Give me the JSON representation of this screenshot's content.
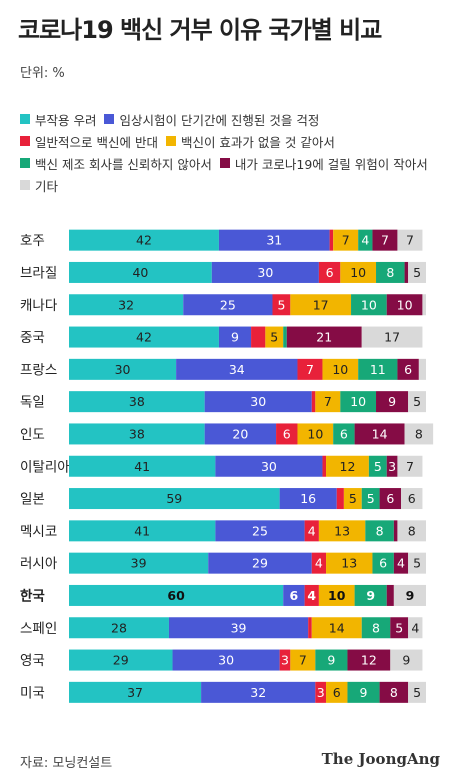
{
  "title": "코로나19 백신 거부 이유 국가별 비교",
  "unit": "단위: %",
  "source": "자료: 모닝컨설트",
  "brand": "The JoongAng",
  "chart_data": {
    "type": "bar",
    "orientation": "horizontal",
    "stacked": true,
    "xlim": [
      0,
      100
    ],
    "grid": false,
    "legend_position": "top",
    "categories": [
      "호주",
      "브라질",
      "캐나다",
      "중국",
      "프랑스",
      "독일",
      "인도",
      "이탈리아",
      "일본",
      "멕시코",
      "러시아",
      "한국",
      "스페인",
      "영국",
      "미국"
    ],
    "highlight_category": "한국",
    "series": [
      {
        "name": "부작용 우려",
        "color": "#23c3c3",
        "values": [
          42,
          40,
          32,
          42,
          30,
          38,
          38,
          41,
          59,
          41,
          39,
          60,
          28,
          29,
          37
        ]
      },
      {
        "name": "임상시험이 단기간에 진행된 것을 걱정",
        "color": "#4a58d6",
        "values": [
          31,
          30,
          25,
          9,
          34,
          30,
          20,
          30,
          16,
          25,
          29,
          6,
          39,
          30,
          32
        ]
      },
      {
        "name": "일반적으로 백신에 반대",
        "color": "#e8213a",
        "values": [
          1,
          6,
          5,
          4,
          7,
          1,
          6,
          1,
          2,
          4,
          4,
          4,
          1,
          3,
          3
        ]
      },
      {
        "name": "백신이 효과가 없을 것 같아서",
        "color": "#f2b500",
        "values": [
          7,
          10,
          17,
          5,
          10,
          7,
          10,
          12,
          5,
          13,
          13,
          10,
          14,
          7,
          6
        ]
      },
      {
        "name": "백신 제조 회사를 신뢰하지 않아서",
        "color": "#17a878",
        "values": [
          4,
          8,
          10,
          1,
          11,
          10,
          6,
          5,
          5,
          8,
          6,
          9,
          8,
          9,
          9
        ]
      },
      {
        "name": "내가 코로나19에 걸릴 위험이 작아서",
        "color": "#850c45",
        "values": [
          7,
          1,
          10,
          21,
          6,
          9,
          14,
          3,
          6,
          1,
          4,
          2,
          5,
          12,
          8
        ]
      },
      {
        "name": "기타",
        "color": "#d9d9d9",
        "values": [
          7,
          5,
          1,
          17,
          2,
          5,
          8,
          7,
          6,
          8,
          5,
          9,
          4,
          9,
          5
        ]
      }
    ],
    "labels": [
      [
        "42",
        "31",
        "",
        "7",
        "4",
        "7",
        "7"
      ],
      [
        "40",
        "30",
        "6",
        "10",
        "8",
        "",
        "5"
      ],
      [
        "32",
        "25",
        "5",
        "17",
        "10",
        "10",
        ""
      ],
      [
        "42",
        "9",
        "",
        "5",
        "",
        "21",
        "17"
      ],
      [
        "30",
        "34",
        "7",
        "10",
        "11",
        "6",
        ""
      ],
      [
        "38",
        "30",
        "",
        "7",
        "10",
        "9",
        "5"
      ],
      [
        "38",
        "20",
        "6",
        "10",
        "6",
        "14",
        "8"
      ],
      [
        "41",
        "30",
        "",
        "12",
        "5",
        "3",
        "7"
      ],
      [
        "59",
        "16",
        "",
        "5",
        "5",
        "6",
        "6"
      ],
      [
        "41",
        "25",
        "4",
        "13",
        "8",
        "",
        "8"
      ],
      [
        "39",
        "29",
        "4",
        "13",
        "6",
        "4",
        "5"
      ],
      [
        "60",
        "6",
        "4",
        "10",
        "9",
        "",
        "9"
      ],
      [
        "28",
        "39",
        "",
        "14",
        "8",
        "5",
        "4"
      ],
      [
        "29",
        "30",
        "3",
        "7",
        "9",
        "12",
        "9"
      ],
      [
        "37",
        "32",
        "3",
        "6",
        "9",
        "8",
        "5"
      ]
    ]
  }
}
